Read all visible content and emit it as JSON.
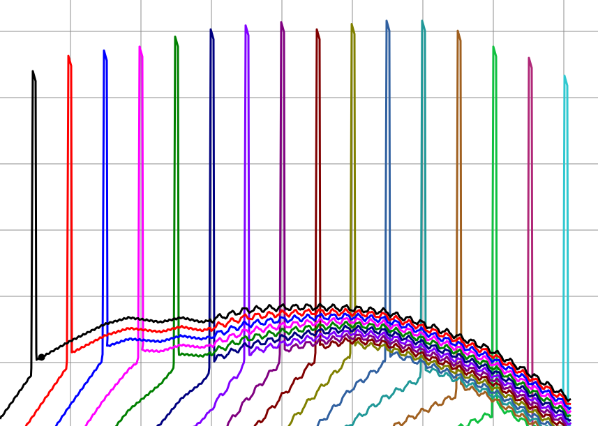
{
  "chart_data": {
    "type": "line",
    "title": "",
    "xlabel": "",
    "ylabel": "",
    "xlim": [
      0,
      8.48
    ],
    "ylim": [
      0,
      6.47
    ],
    "grid": true,
    "grid_x": [
      1,
      2,
      3,
      4,
      5,
      6,
      7,
      8
    ],
    "grid_y": [
      1,
      2,
      3,
      4,
      5,
      6
    ],
    "legend": "none",
    "envelope": {
      "x": [
        0.59,
        0.99,
        1.49,
        1.83,
        2.28,
        2.57,
        2.87,
        3.47,
        3.96,
        4.46,
        4.95,
        5.45,
        5.94,
        6.44,
        6.93,
        7.43,
        7.82,
        7.97
      ],
      "y": [
        1.08,
        1.32,
        1.58,
        1.68,
        1.61,
        1.68,
        1.61,
        1.79,
        1.83,
        1.84,
        1.82,
        1.77,
        1.61,
        1.42,
        1.21,
        0.89,
        0.63,
        0.53
      ]
    },
    "series": [
      {
        "color": "#000000",
        "spike_x": 0.475,
        "peak_y": 5.4,
        "offset": 0.0,
        "marker": {
          "x": 0.59,
          "y": 1.08
        }
      },
      {
        "color": "#ff0000",
        "spike_x": 0.98,
        "peak_y": 5.63,
        "offset": 0.06
      },
      {
        "color": "#0000ff",
        "spike_x": 1.485,
        "peak_y": 5.71,
        "offset": 0.12
      },
      {
        "color": "#ff00ff",
        "spike_x": 1.99,
        "peak_y": 5.77,
        "offset": 0.18
      },
      {
        "color": "#008000",
        "spike_x": 2.495,
        "peak_y": 5.92,
        "offset": 0.24
      },
      {
        "color": "#000080",
        "spike_x": 3.0,
        "peak_y": 6.03,
        "offset": 0.3
      },
      {
        "color": "#8000ff",
        "spike_x": 3.495,
        "peak_y": 6.09,
        "offset": 0.36
      },
      {
        "color": "#800080",
        "spike_x": 4.0,
        "peak_y": 6.14,
        "offset": 0.42
      },
      {
        "color": "#800000",
        "spike_x": 4.505,
        "peak_y": 6.03,
        "offset": 0.48
      },
      {
        "color": "#808000",
        "spike_x": 5.0,
        "peak_y": 6.11,
        "offset": 0.54
      },
      {
        "color": "#3060a0",
        "spike_x": 5.495,
        "peak_y": 6.16,
        "offset": 0.6
      },
      {
        "color": "#209898",
        "spike_x": 6.0,
        "peak_y": 6.16,
        "offset": 0.66
      },
      {
        "color": "#a06020",
        "spike_x": 6.505,
        "peak_y": 6.01,
        "offset": 0.72
      },
      {
        "color": "#10c040",
        "spike_x": 7.01,
        "peak_y": 5.77,
        "offset": 0.78
      },
      {
        "color": "#b02878",
        "spike_x": 7.515,
        "peak_y": 5.6,
        "offset": 0.84
      },
      {
        "color": "#30c8d0",
        "spike_x": 8.02,
        "peak_y": 5.33,
        "offset": 0.4
      }
    ]
  }
}
